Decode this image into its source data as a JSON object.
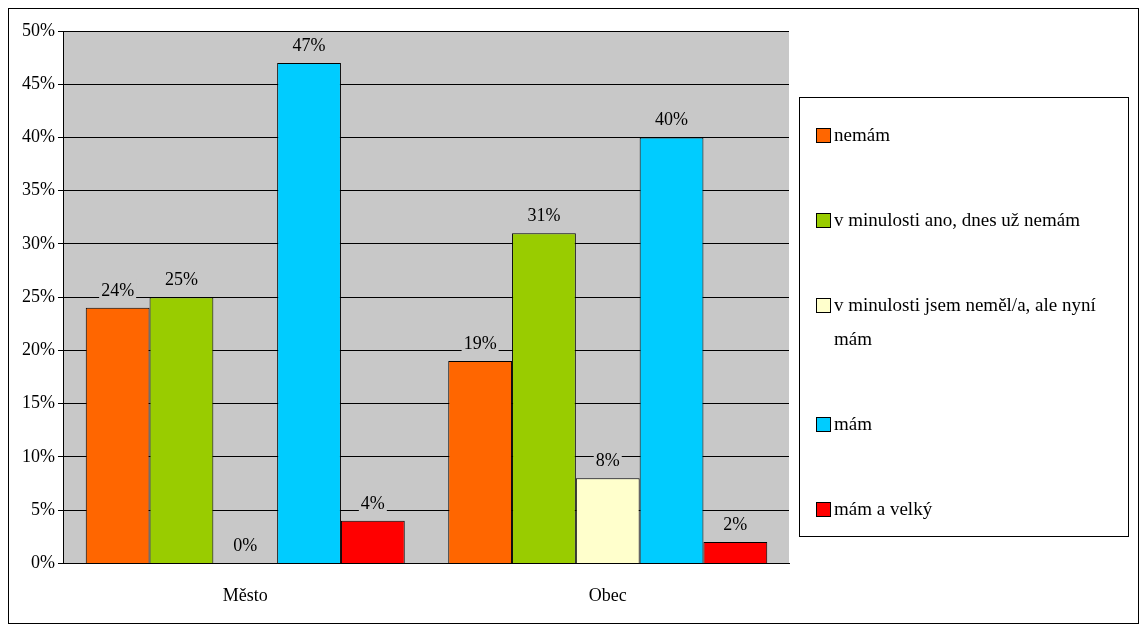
{
  "chart_data": {
    "type": "bar",
    "categories": [
      "Město",
      "Obec"
    ],
    "series": [
      {
        "name": "nemám",
        "color": "#ff6600",
        "values": [
          24,
          19
        ],
        "value_labels": [
          "24%",
          "19%"
        ]
      },
      {
        "name": "v minulosti ano, dnes už nemám",
        "color": "#99cc00",
        "values": [
          25,
          31
        ],
        "value_labels": [
          "25%",
          "31%"
        ]
      },
      {
        "name": "v minulosti jsem neměl/a, ale nyní mám",
        "color": "#ffffcc",
        "values": [
          0,
          8
        ],
        "value_labels": [
          "0%",
          "8%"
        ]
      },
      {
        "name": "mám",
        "color": "#00ccff",
        "values": [
          47,
          40
        ],
        "value_labels": [
          "47%",
          "40%"
        ]
      },
      {
        "name": "mám a velký",
        "color": "#ff0000",
        "values": [
          4,
          2
        ],
        "value_labels": [
          "4%",
          "2%"
        ]
      }
    ],
    "ylim": [
      0,
      50
    ],
    "yticks": [
      {
        "value": 0,
        "label": "0%"
      },
      {
        "value": 5,
        "label": "5%"
      },
      {
        "value": 10,
        "label": "10%"
      },
      {
        "value": 15,
        "label": "15%"
      },
      {
        "value": 20,
        "label": "20%"
      },
      {
        "value": 25,
        "label": "25%"
      },
      {
        "value": 30,
        "label": "30%"
      },
      {
        "value": 35,
        "label": "35%"
      },
      {
        "value": 40,
        "label": "40%"
      },
      {
        "value": 45,
        "label": "45%"
      },
      {
        "value": 50,
        "label": "50%"
      }
    ],
    "grid": "y",
    "legend": "right"
  }
}
